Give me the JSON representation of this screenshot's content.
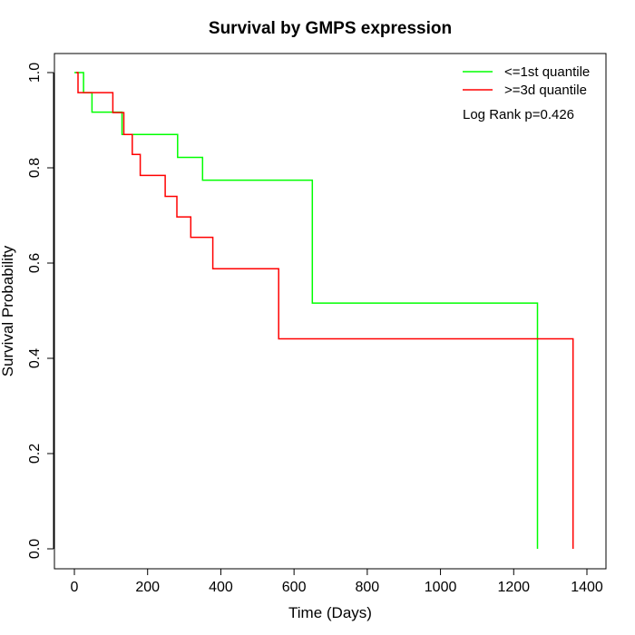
{
  "chart_data": {
    "type": "line",
    "title": "Survival by GMPS expression",
    "xlabel": "Time (Days)",
    "ylabel": "Survival Probability",
    "xlim": [
      0,
      1400
    ],
    "ylim": [
      0,
      1
    ],
    "x_ticks": [
      "0",
      "200",
      "400",
      "600",
      "800",
      "1000",
      "1200",
      "1400"
    ],
    "y_ticks": [
      "0.0",
      "0.2",
      "0.4",
      "0.6",
      "0.8",
      "1.0"
    ],
    "legend_position": "top-right",
    "annotation": "Log Rank p=0.426",
    "step": true,
    "series": [
      {
        "name": "<=1st quantile",
        "color": "#00ff00",
        "points": [
          [
            0,
            1.0
          ],
          [
            25,
            1.0
          ],
          [
            25,
            0.958
          ],
          [
            48,
            0.958
          ],
          [
            48,
            0.917
          ],
          [
            130,
            0.917
          ],
          [
            130,
            0.87
          ],
          [
            282,
            0.87
          ],
          [
            282,
            0.822
          ],
          [
            350,
            0.822
          ],
          [
            350,
            0.774
          ],
          [
            650,
            0.774
          ],
          [
            650,
            0.516
          ],
          [
            1265,
            0.516
          ],
          [
            1265,
            0.0
          ]
        ]
      },
      {
        "name": ">=3d quantile",
        "color": "#ff0000",
        "points": [
          [
            5,
            1.0
          ],
          [
            10,
            1.0
          ],
          [
            10,
            0.958
          ],
          [
            105,
            0.958
          ],
          [
            105,
            0.916
          ],
          [
            135,
            0.916
          ],
          [
            135,
            0.87
          ],
          [
            158,
            0.87
          ],
          [
            158,
            0.828
          ],
          [
            180,
            0.828
          ],
          [
            180,
            0.784
          ],
          [
            248,
            0.784
          ],
          [
            248,
            0.74
          ],
          [
            280,
            0.74
          ],
          [
            280,
            0.697
          ],
          [
            318,
            0.697
          ],
          [
            318,
            0.654
          ],
          [
            378,
            0.654
          ],
          [
            378,
            0.588
          ],
          [
            558,
            0.588
          ],
          [
            558,
            0.441
          ],
          [
            1362,
            0.441
          ],
          [
            1362,
            0.0
          ]
        ]
      }
    ]
  }
}
